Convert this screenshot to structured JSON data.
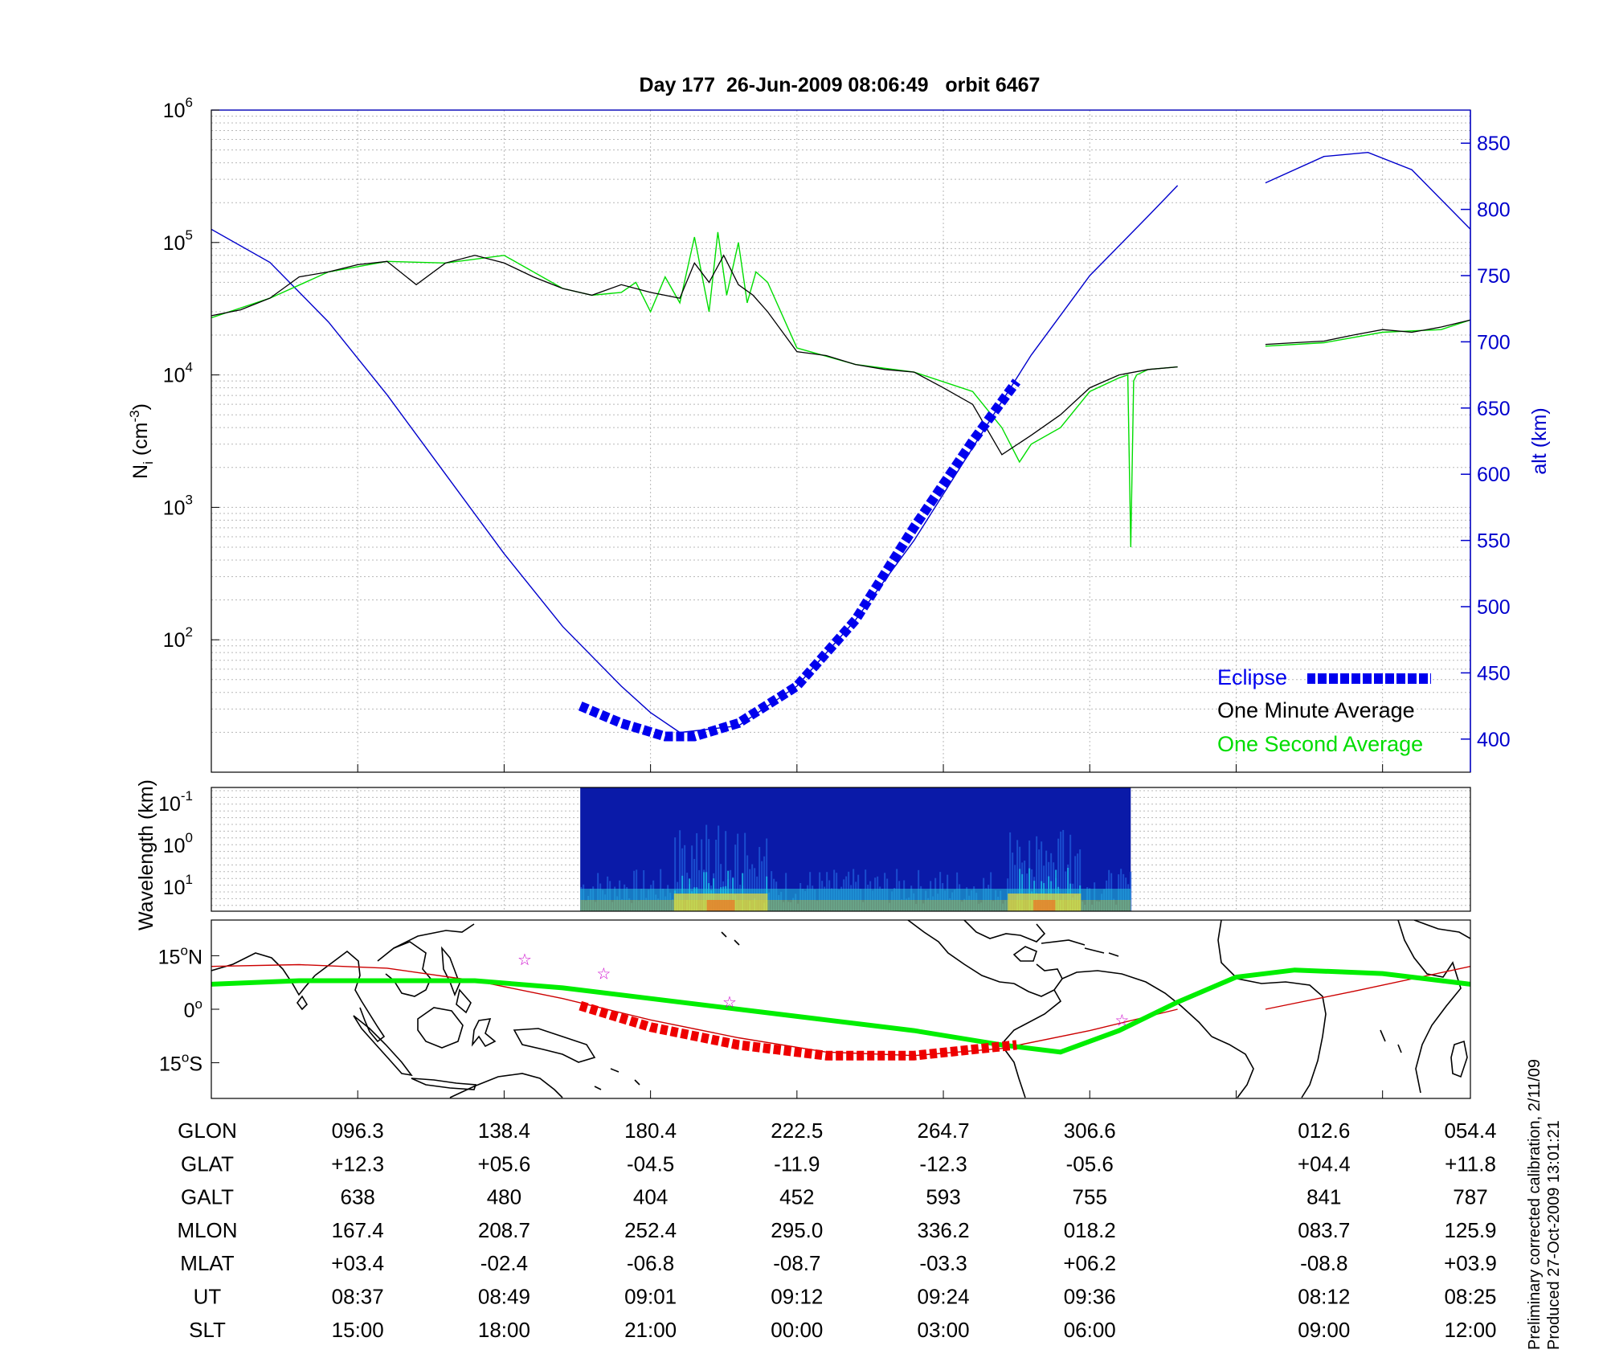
{
  "title": "Day 177  26-Jun-2009 08:06:49   orbit 6467",
  "side_note": {
    "line1": "Preliminary corrected calibration, 2/11/09",
    "line2": "Produced 27-Oct-2009 13:01:21"
  },
  "colors": {
    "alt": "#0000cc",
    "eclipse": "#0000ee",
    "minute": "#000000",
    "second": "#00dd00",
    "track": "#cc0000",
    "track_eclipse": "#ee0000",
    "equator": "#00ee00",
    "star": "#cc00cc"
  },
  "chart_data": [
    {
      "type": "line",
      "name": "density-altitude",
      "ylabel": "N_i (cm^-3)",
      "ylabel_parts": {
        "base": "N",
        "sub": "i",
        "unit_open": " (cm",
        "sup": "-3",
        "unit_close": ")"
      },
      "y_scale": "log",
      "ylim": [
        10,
        1000000
      ],
      "y_ticks": [
        {
          "base": "10",
          "exp": "2",
          "value": 100
        },
        {
          "base": "10",
          "exp": "3",
          "value": 1000
        },
        {
          "base": "10",
          "exp": "4",
          "value": 10000
        },
        {
          "base": "10",
          "exp": "5",
          "value": 100000
        },
        {
          "base": "10",
          "exp": "6",
          "value": 1000000
        }
      ],
      "y2label": "alt (km)",
      "y2lim": [
        375,
        875
      ],
      "y2_ticks": [
        "400",
        "450",
        "500",
        "550",
        "600",
        "650",
        "700",
        "750",
        "800",
        "850"
      ],
      "xlim": [
        0,
        43
      ],
      "x_gridlines": [
        5,
        10,
        15,
        20,
        25,
        30,
        35,
        40
      ],
      "grid": true,
      "legend_position": "bottom-right",
      "legend": [
        {
          "label": "Eclipse",
          "color": "#0000ee"
        },
        {
          "label": "One Minute Average",
          "color": "#000000"
        },
        {
          "label": "One Second Average",
          "color": "#00dd00"
        }
      ],
      "series": [
        {
          "name": "alt (km)",
          "axis": "right",
          "segments": [
            {
              "x": [
                0,
                2,
                4,
                6,
                8,
                10,
                12,
                14,
                15,
                16,
                18,
                20,
                22,
                24,
                26,
                28,
                30,
                32,
                33
              ],
              "y": [
                785,
                760,
                715,
                660,
                600,
                540,
                485,
                440,
                420,
                405,
                410,
                440,
                490,
                550,
                620,
                690,
                750,
                795,
                818
              ]
            },
            {
              "x": [
                36,
                38,
                39.5,
                41,
                43
              ],
              "y": [
                820,
                840,
                843,
                830,
                785
              ]
            }
          ]
        },
        {
          "name": "Eclipse",
          "axis": "right",
          "x": [
            12.6,
            14,
            15.5,
            16.5,
            18,
            20,
            22,
            24,
            26,
            27.5
          ],
          "y": [
            425,
            412,
            402,
            402,
            412,
            440,
            490,
            560,
            625,
            670
          ]
        },
        {
          "name": "One Minute Average",
          "axis": "left",
          "segments": [
            {
              "x": [
                0,
                1,
                2,
                3,
                4,
                5,
                6,
                7,
                8,
                9,
                10,
                11,
                12,
                13,
                14,
                15,
                16,
                16.5,
                17,
                17.5,
                18,
                18.5,
                19,
                20,
                21,
                22,
                23,
                24,
                25,
                26,
                27,
                28,
                29,
                30,
                31,
                32,
                33
              ],
              "y": [
                28000,
                31000,
                38000,
                55000,
                60000,
                68000,
                72000,
                48000,
                70000,
                80000,
                70000,
                55000,
                45000,
                40000,
                48000,
                42000,
                38000,
                70000,
                50000,
                80000,
                48000,
                40000,
                30000,
                15000,
                14000,
                12000,
                11000,
                10500,
                8000,
                6000,
                2500,
                3500,
                5000,
                8000,
                10000,
                11000,
                11500
              ]
            },
            {
              "x": [
                36,
                37,
                38,
                39,
                40,
                41,
                42,
                43
              ],
              "y": [
                17000,
                17500,
                18000,
                20000,
                22000,
                21000,
                23000,
                26000
              ]
            }
          ]
        },
        {
          "name": "One Second Average",
          "axis": "left",
          "segments": [
            {
              "x": [
                0,
                2,
                4,
                6,
                8,
                10,
                12,
                13,
                14,
                14.5,
                15,
                15.5,
                16,
                16.5,
                17,
                17.3,
                17.6,
                18,
                18.3,
                18.6,
                19,
                20,
                22,
                24,
                26,
                27,
                27.6,
                28,
                29,
                30,
                31,
                31.3,
                31.4,
                31.5,
                31.6,
                32,
                33
              ],
              "y": [
                27000,
                38000,
                60000,
                72000,
                70000,
                80000,
                45000,
                40000,
                42000,
                50000,
                30000,
                55000,
                35000,
                110000,
                30000,
                120000,
                40000,
                100000,
                35000,
                60000,
                50000,
                16000,
                12000,
                10500,
                7500,
                4000,
                2200,
                3000,
                4000,
                7500,
                9500,
                10000,
                500,
                9000,
                10000,
                11000,
                11500
              ]
            },
            {
              "x": [
                36,
                38,
                40,
                42,
                43
              ],
              "y": [
                16500,
                17500,
                21000,
                22000,
                26000
              ]
            }
          ]
        }
      ]
    },
    {
      "type": "heatmap",
      "name": "wavelength-spectrogram",
      "ylabel": "Wavelength (km)",
      "y_scale": "log",
      "y_ticks": [
        {
          "base": "10",
          "exp": "-1"
        },
        {
          "base": "10",
          "exp": "0"
        },
        {
          "base": "10",
          "exp": "1"
        }
      ],
      "xlim": [
        0,
        43
      ],
      "data_range_x": [
        12.6,
        31.4
      ],
      "colormap": "jet",
      "active_regions_x": [
        [
          15.8,
          19
        ],
        [
          27.2,
          29.7
        ]
      ]
    },
    {
      "type": "line",
      "name": "ground-track-map",
      "y_ticks": [
        {
          "label": "15",
          "deg": "o",
          "hemi": "N"
        },
        {
          "label": "0",
          "deg": "o",
          "hemi": ""
        },
        {
          "label": "15",
          "deg": "o",
          "hemi": "S"
        }
      ],
      "xlim": [
        0,
        43
      ],
      "ylim": [
        -25,
        25
      ],
      "series": [
        {
          "name": "orbit track",
          "segments": [
            {
              "x": [
                0,
                3,
                6,
                9,
                12,
                15,
                18,
                21,
                24,
                27,
                30,
                33
              ],
              "y": [
                12,
                12.5,
                11.5,
                8,
                3,
                -3,
                -8,
                -12,
                -13,
                -11,
                -6,
                0
              ]
            },
            {
              "x": [
                36,
                39,
                43
              ],
              "y": [
                0,
                5,
                12
              ]
            }
          ]
        },
        {
          "name": "eclipse track",
          "x": [
            12.6,
            15,
            18,
            21,
            24,
            27.5
          ],
          "y": [
            1,
            -5,
            -10,
            -13,
            -13,
            -10
          ]
        },
        {
          "name": "magnetic equator",
          "x": [
            0,
            3,
            6,
            9,
            12,
            15,
            18,
            21,
            24,
            27,
            29,
            31,
            33,
            35,
            37,
            40,
            43
          ],
          "y": [
            7,
            8,
            8,
            8,
            6,
            3,
            0,
            -3,
            -6,
            -10,
            -12,
            -6,
            2,
            9,
            11,
            10,
            7
          ]
        },
        {
          "name": "stars",
          "x": [
            10.7,
            13.4,
            17.7,
            31.1
          ],
          "y": [
            14,
            10,
            2,
            -3
          ]
        }
      ]
    },
    {
      "type": "table",
      "name": "orbit-parameters",
      "columns_x": [
        5,
        10,
        15,
        20,
        25,
        30,
        38,
        43
      ],
      "rows": [
        {
          "label": "GLON",
          "values": [
            "096.3",
            "138.4",
            "180.4",
            "222.5",
            "264.7",
            "306.6",
            "012.6",
            "054.4"
          ]
        },
        {
          "label": "GLAT",
          "values": [
            "+12.3",
            "+05.6",
            "-04.5",
            "-11.9",
            "-12.3",
            "-05.6",
            "+04.4",
            "+11.8"
          ]
        },
        {
          "label": "GALT",
          "values": [
            "638",
            "480",
            "404",
            "452",
            "593",
            "755",
            "841",
            "787"
          ]
        },
        {
          "label": "MLON",
          "values": [
            "167.4",
            "208.7",
            "252.4",
            "295.0",
            "336.2",
            "018.2",
            "083.7",
            "125.9"
          ]
        },
        {
          "label": "MLAT",
          "values": [
            "+03.4",
            "-02.4",
            "-06.8",
            "-08.7",
            "-03.3",
            "+06.2",
            "-08.8",
            "+03.9"
          ]
        },
        {
          "label": "UT",
          "values": [
            "08:37",
            "08:49",
            "09:01",
            "09:12",
            "09:24",
            "09:36",
            "08:12",
            "08:25"
          ]
        },
        {
          "label": "SLT",
          "values": [
            "15:00",
            "18:00",
            "21:00",
            "00:00",
            "03:00",
            "06:00",
            "09:00",
            "12:00"
          ]
        }
      ]
    }
  ]
}
